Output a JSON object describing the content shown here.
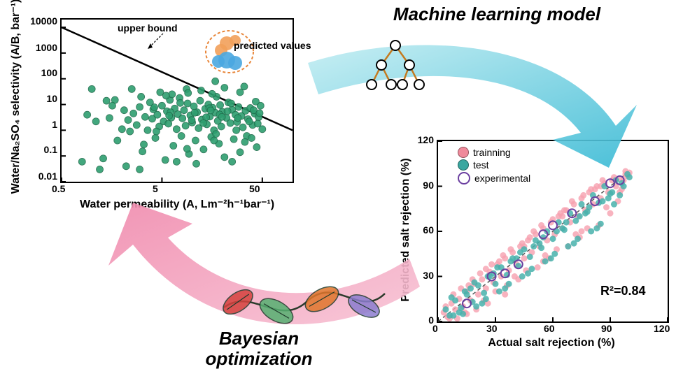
{
  "title_ml": "Machine learning model",
  "title_bayes": "Bayesian optimization",
  "left_chart": {
    "type": "scatter_loglog",
    "x_label": "Water permeability (A, Lm⁻²h⁻¹bar⁻¹)",
    "y_label": "Water/Na₂SO₄ selectivity (A/B, bar⁻¹)",
    "x_ticks": [
      0.5,
      5,
      50
    ],
    "y_ticks": [
      0.01,
      0.1,
      1,
      10,
      100,
      1000,
      10000
    ],
    "x_range": [
      0.5,
      100
    ],
    "y_range": [
      0.01,
      20000
    ],
    "upper_bound_label": "upper bound",
    "predicted_label": "predicted values",
    "upper_bound_line": {
      "x1": 0.5,
      "y1": 10000,
      "x2": 100,
      "y2": 1
    },
    "point_color": "#2e9e6f",
    "point_border": "#1f6b4b",
    "predicted_colors": {
      "dash": "#e8863a",
      "cluster_top": "#f2a05a",
      "cluster_bottom": "#4aa7e0"
    },
    "font_size_axis": 16,
    "font_size_tick": 14,
    "points": [
      [
        0.9,
        4
      ],
      [
        1.1,
        2.2
      ],
      [
        1.3,
        0.08
      ],
      [
        1.5,
        3
      ],
      [
        1.7,
        15
      ],
      [
        1.8,
        0.4
      ],
      [
        2.0,
        1.1
      ],
      [
        2.1,
        6
      ],
      [
        2.3,
        2.5
      ],
      [
        2.4,
        0.9
      ],
      [
        2.6,
        4.5
      ],
      [
        2.8,
        1.6
      ],
      [
        3.0,
        8
      ],
      [
        3.1,
        20
      ],
      [
        3.2,
        0.15
      ],
      [
        3.4,
        3.3
      ],
      [
        3.6,
        1.0
      ],
      [
        3.8,
        12
      ],
      [
        4.0,
        2.8
      ],
      [
        4.1,
        6.5
      ],
      [
        4.3,
        0.5
      ],
      [
        4.5,
        4.0
      ],
      [
        4.7,
        1.4
      ],
      [
        5.0,
        9
      ],
      [
        5.2,
        2.2
      ],
      [
        5.4,
        0.07
      ],
      [
        5.6,
        5.5
      ],
      [
        5.8,
        1.8
      ],
      [
        6.0,
        15
      ],
      [
        6.2,
        3.1
      ],
      [
        6.5,
        0.25
      ],
      [
        6.7,
        7.0
      ],
      [
        7.0,
        1.1
      ],
      [
        7.2,
        4.2
      ],
      [
        7.5,
        18
      ],
      [
        7.8,
        0.6
      ],
      [
        8.0,
        2.9
      ],
      [
        8.3,
        6.0
      ],
      [
        8.6,
        1.5
      ],
      [
        9.0,
        11
      ],
      [
        9.3,
        0.12
      ],
      [
        9.6,
        3.8
      ],
      [
        10.0,
        2.0
      ],
      [
        10.4,
        8.5
      ],
      [
        10.8,
        0.4
      ],
      [
        11.2,
        5.0
      ],
      [
        11.6,
        1.2
      ],
      [
        12.0,
        14
      ],
      [
        12.5,
        2.6
      ],
      [
        13.0,
        0.18
      ],
      [
        13.5,
        6.8
      ],
      [
        14.0,
        1.7
      ],
      [
        14.5,
        10
      ],
      [
        15.0,
        3.4
      ],
      [
        15.5,
        0.55
      ],
      [
        16.0,
        7.5
      ],
      [
        16.5,
        1.0
      ],
      [
        17.0,
        4.8
      ],
      [
        17.5,
        20
      ],
      [
        18.0,
        2.3
      ],
      [
        18.5,
        0.3
      ],
      [
        19.0,
        9.5
      ],
      [
        19.5,
        1.4
      ],
      [
        20.0,
        5.2
      ],
      [
        21.0,
        0.09
      ],
      [
        22.0,
        3.0
      ],
      [
        23.0,
        12
      ],
      [
        24.0,
        1.9
      ],
      [
        25.0,
        6.2
      ],
      [
        26.0,
        0.45
      ],
      [
        27.0,
        4.0
      ],
      [
        28.0,
        2.1
      ],
      [
        29.0,
        8.0
      ],
      [
        30.0,
        0.14
      ],
      [
        31.0,
        3.6
      ],
      [
        32.0,
        1.3
      ],
      [
        33.0,
        50
      ],
      [
        34.0,
        5.7
      ],
      [
        35.0,
        0.6
      ],
      [
        36.0,
        2.7
      ],
      [
        38.0,
        7.3
      ],
      [
        40.0,
        1.6
      ],
      [
        42.0,
        4.4
      ],
      [
        44.0,
        0.22
      ],
      [
        46.0,
        3.2
      ],
      [
        48.0,
        9.0
      ],
      [
        50.0,
        1.1
      ],
      [
        6.3,
        25
      ],
      [
        4.8,
        30
      ],
      [
        15.8,
        26
      ],
      [
        8.8,
        40
      ],
      [
        11.0,
        0.05
      ],
      [
        2.2,
        0.04
      ],
      [
        9.1,
        28
      ],
      [
        12.3,
        35
      ],
      [
        5.5,
        22
      ],
      [
        3.0,
        0.03
      ],
      [
        7.0,
        0.06
      ],
      [
        25.0,
        0.06
      ],
      [
        30.0,
        30
      ],
      [
        21.0,
        45
      ],
      [
        17.0,
        80
      ],
      [
        4.4,
        0.9
      ],
      [
        6.1,
        5.0
      ],
      [
        13.8,
        3.2
      ],
      [
        16.5,
        0.4
      ],
      [
        22.5,
        5.5
      ],
      [
        27.5,
        1.0
      ],
      [
        9.9,
        2.5
      ],
      [
        14.8,
        7.2
      ],
      [
        18.8,
        4.1
      ],
      [
        24.5,
        11
      ],
      [
        28.5,
        3.0
      ],
      [
        33.5,
        0.35
      ],
      [
        37.0,
        2.2
      ],
      [
        41.0,
        6.0
      ],
      [
        45.0,
        1.8
      ],
      [
        39.0,
        0.5
      ],
      [
        43.0,
        13
      ],
      [
        47.0,
        4.6
      ],
      [
        3.3,
        0.28
      ],
      [
        4.2,
        7.8
      ],
      [
        5.9,
        3.7
      ],
      [
        7.6,
        11.5
      ],
      [
        8.9,
        0.19
      ],
      [
        10.6,
        4.8
      ],
      [
        12.9,
        1.9
      ],
      [
        15.3,
        5.9
      ],
      [
        17.3,
        0.72
      ],
      [
        19.8,
        3.3
      ],
      [
        1.0,
        40
      ],
      [
        1.2,
        0.03
      ],
      [
        1.6,
        9
      ],
      [
        0.8,
        0.06
      ],
      [
        2.5,
        40
      ],
      [
        1.4,
        14
      ]
    ]
  },
  "right_chart": {
    "type": "scatter_parity",
    "x_label": "Actual salt rejection (%)",
    "y_label": "Predicted salt rejection (%)",
    "ticks": [
      0,
      30,
      60,
      90,
      120
    ],
    "range": [
      0,
      120
    ],
    "r2_label": "R²=0.84",
    "legend": [
      {
        "label": "trainning",
        "color": "#f08a9b",
        "border": "#f08a9b"
      },
      {
        "label": "test",
        "color": "#3aa7a0",
        "border": "#3aa7a0"
      },
      {
        "label": "experimental",
        "color": "#6b3fa0",
        "border": "#6b3fa0"
      }
    ],
    "diag_color": "#555555",
    "font_size_axis": 16,
    "font_size_tick": 14,
    "train_color": "#f6a0af",
    "test_color": "#48b2ab",
    "exp_color": "#6b3fa0",
    "train_points": [
      [
        3,
        6
      ],
      [
        5,
        3
      ],
      [
        7,
        12
      ],
      [
        9,
        8
      ],
      [
        11,
        15
      ],
      [
        13,
        10
      ],
      [
        15,
        20
      ],
      [
        17,
        14
      ],
      [
        19,
        25
      ],
      [
        21,
        18
      ],
      [
        23,
        28
      ],
      [
        25,
        22
      ],
      [
        27,
        33
      ],
      [
        29,
        26
      ],
      [
        31,
        38
      ],
      [
        33,
        30
      ],
      [
        35,
        42
      ],
      [
        37,
        34
      ],
      [
        39,
        46
      ],
      [
        41,
        38
      ],
      [
        43,
        50
      ],
      [
        45,
        42
      ],
      [
        47,
        54
      ],
      [
        49,
        46
      ],
      [
        51,
        58
      ],
      [
        53,
        50
      ],
      [
        55,
        62
      ],
      [
        57,
        54
      ],
      [
        59,
        66
      ],
      [
        61,
        58
      ],
      [
        63,
        70
      ],
      [
        65,
        62
      ],
      [
        67,
        74
      ],
      [
        69,
        66
      ],
      [
        71,
        78
      ],
      [
        73,
        70
      ],
      [
        75,
        82
      ],
      [
        77,
        74
      ],
      [
        79,
        86
      ],
      [
        81,
        78
      ],
      [
        83,
        90
      ],
      [
        85,
        82
      ],
      [
        87,
        92
      ],
      [
        89,
        86
      ],
      [
        91,
        94
      ],
      [
        93,
        90
      ],
      [
        95,
        95
      ],
      [
        97,
        94
      ],
      [
        99,
        97
      ],
      [
        100,
        99
      ],
      [
        8,
        18
      ],
      [
        14,
        6
      ],
      [
        22,
        32
      ],
      [
        30,
        20
      ],
      [
        38,
        48
      ],
      [
        46,
        34
      ],
      [
        54,
        64
      ],
      [
        62,
        48
      ],
      [
        70,
        80
      ],
      [
        78,
        62
      ],
      [
        86,
        94
      ],
      [
        94,
        80
      ],
      [
        10,
        2
      ],
      [
        18,
        28
      ],
      [
        26,
        12
      ],
      [
        34,
        44
      ],
      [
        42,
        28
      ],
      [
        50,
        60
      ],
      [
        58,
        42
      ],
      [
        66,
        74
      ],
      [
        74,
        56
      ],
      [
        82,
        88
      ],
      [
        90,
        72
      ],
      [
        98,
        98
      ],
      [
        12,
        22
      ],
      [
        20,
        8
      ],
      [
        28,
        38
      ],
      [
        36,
        24
      ],
      [
        44,
        52
      ],
      [
        52,
        36
      ],
      [
        60,
        68
      ],
      [
        68,
        50
      ],
      [
        76,
        84
      ],
      [
        84,
        64
      ],
      [
        92,
        96
      ],
      [
        96,
        88
      ],
      [
        4,
        10
      ],
      [
        6,
        2
      ],
      [
        16,
        24
      ],
      [
        24,
        14
      ],
      [
        32,
        40
      ],
      [
        40,
        30
      ],
      [
        48,
        56
      ],
      [
        56,
        44
      ],
      [
        64,
        72
      ],
      [
        72,
        58
      ],
      [
        80,
        88
      ],
      [
        88,
        76
      ],
      [
        15,
        5
      ],
      [
        25,
        35
      ],
      [
        35,
        18
      ],
      [
        45,
        50
      ],
      [
        55,
        40
      ],
      [
        65,
        70
      ],
      [
        75,
        60
      ],
      [
        85,
        90
      ],
      [
        95,
        86
      ],
      [
        98,
        100
      ]
    ],
    "test_points": [
      [
        4,
        8
      ],
      [
        6,
        4
      ],
      [
        9,
        14
      ],
      [
        12,
        9
      ],
      [
        15,
        18
      ],
      [
        18,
        13
      ],
      [
        21,
        24
      ],
      [
        24,
        19
      ],
      [
        27,
        30
      ],
      [
        30,
        25
      ],
      [
        33,
        36
      ],
      [
        36,
        31
      ],
      [
        39,
        42
      ],
      [
        42,
        37
      ],
      [
        45,
        48
      ],
      [
        48,
        43
      ],
      [
        51,
        54
      ],
      [
        54,
        49
      ],
      [
        57,
        60
      ],
      [
        60,
        55
      ],
      [
        63,
        66
      ],
      [
        66,
        61
      ],
      [
        69,
        72
      ],
      [
        72,
        67
      ],
      [
        75,
        78
      ],
      [
        78,
        73
      ],
      [
        81,
        84
      ],
      [
        84,
        79
      ],
      [
        87,
        90
      ],
      [
        90,
        85
      ],
      [
        93,
        94
      ],
      [
        96,
        92
      ],
      [
        99,
        98
      ],
      [
        7,
        16
      ],
      [
        13,
        5
      ],
      [
        19,
        26
      ],
      [
        25,
        15
      ],
      [
        31,
        36
      ],
      [
        37,
        25
      ],
      [
        43,
        46
      ],
      [
        49,
        35
      ],
      [
        55,
        56
      ],
      [
        61,
        45
      ],
      [
        67,
        66
      ],
      [
        73,
        55
      ],
      [
        79,
        76
      ],
      [
        85,
        65
      ],
      [
        91,
        86
      ],
      [
        97,
        90
      ],
      [
        8,
        4
      ],
      [
        14,
        20
      ],
      [
        20,
        10
      ],
      [
        26,
        30
      ],
      [
        32,
        20
      ],
      [
        38,
        40
      ],
      [
        44,
        30
      ],
      [
        50,
        50
      ],
      [
        56,
        40
      ],
      [
        62,
        60
      ],
      [
        68,
        50
      ],
      [
        74,
        70
      ],
      [
        80,
        60
      ],
      [
        86,
        80
      ],
      [
        92,
        78
      ],
      [
        11,
        6
      ],
      [
        17,
        22
      ],
      [
        23,
        12
      ],
      [
        29,
        32
      ],
      [
        35,
        22
      ],
      [
        41,
        42
      ],
      [
        47,
        32
      ],
      [
        53,
        52
      ],
      [
        59,
        42
      ],
      [
        65,
        62
      ],
      [
        71,
        52
      ],
      [
        77,
        72
      ],
      [
        83,
        62
      ],
      [
        89,
        82
      ],
      [
        95,
        84
      ],
      [
        100,
        96
      ]
    ],
    "exp_points": [
      [
        15,
        12
      ],
      [
        28,
        30
      ],
      [
        42,
        38
      ],
      [
        55,
        58
      ],
      [
        70,
        72
      ],
      [
        82,
        80
      ],
      [
        90,
        92
      ],
      [
        95,
        94
      ],
      [
        35,
        32
      ],
      [
        60,
        64
      ]
    ]
  },
  "arrows": {
    "ml_arrow_colors": [
      "#c2edf2",
      "#37b9d4"
    ],
    "bayes_arrow_colors": [
      "#f7c2d4",
      "#f08aad"
    ]
  },
  "tree_icon": {
    "node_fill": "#ffffff",
    "node_stroke": "#000000",
    "edge_color": "#c47a1f"
  },
  "helix_icon": {
    "colors": [
      "#d6423e",
      "#56b071",
      "#e0762c",
      "#8c7dcf"
    ]
  }
}
